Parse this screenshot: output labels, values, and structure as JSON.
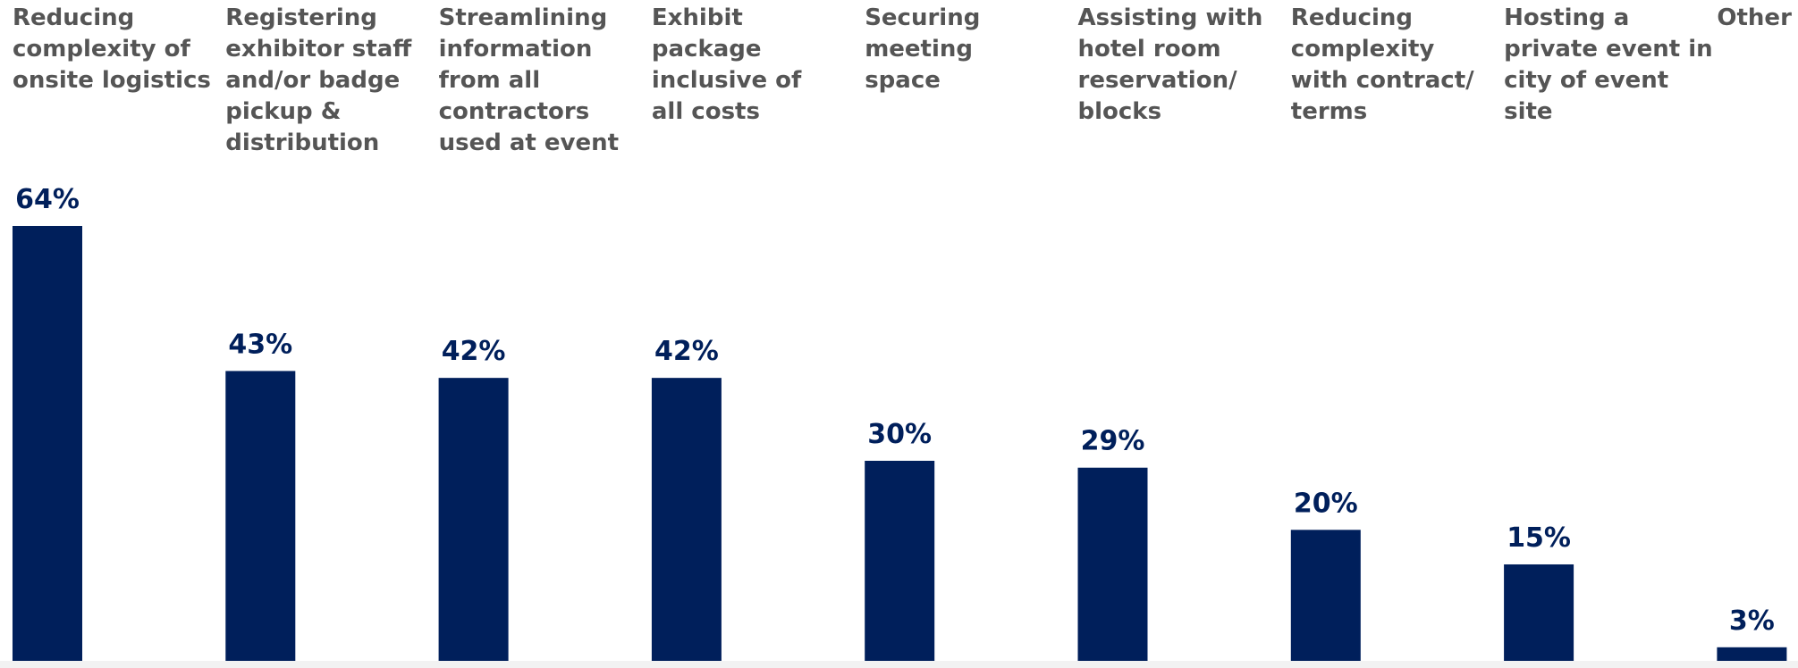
{
  "chart_data": {
    "type": "bar",
    "categories": [
      "Reducing complexity of onsite logistics",
      "Registering exhibitor staff and/or badge pickup & distribution",
      "Streamlining information from all contractors used at event",
      "Exhibit package inclusive of all costs",
      "Securing meeting space",
      "Assisting with hotel room reservation/ blocks",
      "Reducing complexity with contract/ terms",
      "Hosting a private event in city of event site",
      "Other"
    ],
    "category_label_lines": [
      [
        "Reducing",
        "complexity of",
        "onsite logistics"
      ],
      [
        "Registering",
        "exhibitor staff",
        "and/or badge",
        "pickup &",
        "distribution"
      ],
      [
        "Streamlining",
        "information",
        "from all",
        "contractors",
        "used at event"
      ],
      [
        "Exhibit",
        "package",
        "inclusive of",
        "all costs"
      ],
      [
        "Securing",
        "meeting",
        "space"
      ],
      [
        "Assisting with",
        "hotel room",
        "reservation/",
        "blocks"
      ],
      [
        "Reducing",
        "complexity",
        "with contract/",
        "terms"
      ],
      [
        "Hosting a",
        "private event in",
        "city of event",
        "site"
      ],
      [
        "Other"
      ]
    ],
    "values": [
      64,
      43,
      42,
      42,
      30,
      29,
      20,
      15,
      3
    ],
    "value_labels": [
      "64%",
      "43%",
      "42%",
      "42%",
      "30%",
      "29%",
      "20%",
      "15%",
      "3%"
    ],
    "unit": "%",
    "ylim": [
      0,
      64
    ],
    "grid": false,
    "legend": "none",
    "colors": {
      "bar": "#001F5B",
      "value_label": "#001F5B",
      "category_label": "#555555"
    }
  }
}
